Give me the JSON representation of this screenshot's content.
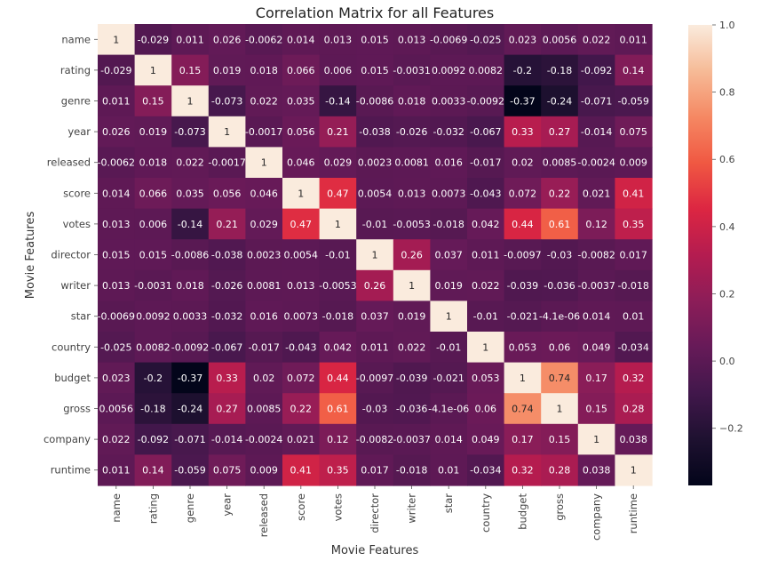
{
  "chart_data": {
    "type": "heatmap",
    "title": "Correlation Matrix for all Features",
    "xlabel": "Movie Features",
    "ylabel": "Movie Features",
    "labels": [
      "name",
      "rating",
      "genre",
      "year",
      "released",
      "score",
      "votes",
      "director",
      "writer",
      "star",
      "country",
      "budget",
      "gross",
      "company",
      "runtime"
    ],
    "values": [
      [
        1,
        -0.029,
        0.011,
        0.026,
        -0.0062,
        0.014,
        0.013,
        0.015,
        0.013,
        -0.0069,
        -0.025,
        0.023,
        0.0056,
        0.022,
        0.011
      ],
      [
        -0.029,
        1,
        0.15,
        0.019,
        0.018,
        0.066,
        0.006,
        0.015,
        -0.0031,
        0.0092,
        0.0082,
        -0.2,
        -0.18,
        -0.092,
        0.14
      ],
      [
        0.011,
        0.15,
        1,
        -0.073,
        0.022,
        0.035,
        -0.14,
        -0.0086,
        0.018,
        0.0033,
        -0.0092,
        -0.37,
        -0.24,
        -0.071,
        -0.059
      ],
      [
        0.026,
        0.019,
        -0.073,
        1,
        -0.0017,
        0.056,
        0.21,
        -0.038,
        -0.026,
        -0.032,
        -0.067,
        0.33,
        0.27,
        -0.014,
        0.075
      ],
      [
        -0.0062,
        0.018,
        0.022,
        -0.0017,
        1,
        0.046,
        0.029,
        0.0023,
        0.0081,
        0.016,
        -0.017,
        0.02,
        0.0085,
        -0.0024,
        0.009
      ],
      [
        0.014,
        0.066,
        0.035,
        0.056,
        0.046,
        1,
        0.47,
        0.0054,
        0.013,
        0.0073,
        -0.043,
        0.072,
        0.22,
        0.021,
        0.41
      ],
      [
        0.013,
        0.006,
        -0.14,
        0.21,
        0.029,
        0.47,
        1,
        -0.01,
        -0.0053,
        -0.018,
        0.042,
        0.44,
        0.61,
        0.12,
        0.35
      ],
      [
        0.015,
        0.015,
        -0.0086,
        -0.038,
        0.0023,
        0.0054,
        -0.01,
        1,
        0.26,
        0.037,
        0.011,
        -0.0097,
        -0.03,
        -0.0082,
        0.017
      ],
      [
        0.013,
        -0.0031,
        0.018,
        -0.026,
        0.0081,
        0.013,
        -0.0053,
        0.26,
        1,
        0.019,
        0.022,
        -0.039,
        -0.036,
        -0.0037,
        -0.018
      ],
      [
        -0.0069,
        0.0092,
        0.0033,
        -0.032,
        0.016,
        0.0073,
        -0.018,
        0.037,
        0.019,
        1,
        -0.01,
        -0.021,
        -4.1e-06,
        0.014,
        0.01
      ],
      [
        -0.025,
        0.0082,
        -0.0092,
        -0.067,
        -0.017,
        -0.043,
        0.042,
        0.011,
        0.022,
        -0.01,
        1,
        0.053,
        0.06,
        0.049,
        -0.034
      ],
      [
        0.023,
        -0.2,
        -0.37,
        0.33,
        0.02,
        0.072,
        0.44,
        -0.0097,
        -0.039,
        -0.021,
        0.053,
        1,
        0.74,
        0.17,
        0.32
      ],
      [
        0.0056,
        -0.18,
        -0.24,
        0.27,
        0.0085,
        0.22,
        0.61,
        -0.03,
        -0.036,
        -4.1e-06,
        0.06,
        0.74,
        1,
        0.15,
        0.28
      ],
      [
        0.022,
        -0.092,
        -0.071,
        -0.014,
        -0.0024,
        0.021,
        0.12,
        -0.0082,
        -0.0037,
        0.014,
        0.049,
        0.17,
        0.15,
        1,
        0.038
      ],
      [
        0.011,
        0.14,
        -0.059,
        0.075,
        0.009,
        0.41,
        0.35,
        0.017,
        -0.018,
        0.01,
        -0.034,
        0.32,
        0.28,
        0.038,
        1
      ]
    ],
    "annotations": [
      [
        "1",
        "-0.029",
        "0.011",
        "0.026",
        "-0.0062",
        "0.014",
        "0.013",
        "0.015",
        "0.013",
        "-0.0069",
        "-0.025",
        "0.023",
        "0.0056",
        "0.022",
        "0.011"
      ],
      [
        "-0.029",
        "1",
        "0.15",
        "0.019",
        "0.018",
        "0.066",
        "0.006",
        "0.015",
        "-0.0031",
        "0.0092",
        "0.0082",
        "-0.2",
        "-0.18",
        "-0.092",
        "0.14"
      ],
      [
        "0.011",
        "0.15",
        "1",
        "-0.073",
        "0.022",
        "0.035",
        "-0.14",
        "-0.0086",
        "0.018",
        "0.0033",
        "-0.0092",
        "-0.37",
        "-0.24",
        "-0.071",
        "-0.059"
      ],
      [
        "0.026",
        "0.019",
        "-0.073",
        "1",
        "-0.0017",
        "0.056",
        "0.21",
        "-0.038",
        "-0.026",
        "-0.032",
        "-0.067",
        "0.33",
        "0.27",
        "-0.014",
        "0.075"
      ],
      [
        "-0.0062",
        "0.018",
        "0.022",
        "-0.0017",
        "1",
        "0.046",
        "0.029",
        "0.0023",
        "0.0081",
        "0.016",
        "-0.017",
        "0.02",
        "0.0085",
        "-0.0024",
        "0.009"
      ],
      [
        "0.014",
        "0.066",
        "0.035",
        "0.056",
        "0.046",
        "1",
        "0.47",
        "0.0054",
        "0.013",
        "0.0073",
        "-0.043",
        "0.072",
        "0.22",
        "0.021",
        "0.41"
      ],
      [
        "0.013",
        "0.006",
        "-0.14",
        "0.21",
        "0.029",
        "0.47",
        "1",
        "-0.01",
        "-0.0053",
        "-0.018",
        "0.042",
        "0.44",
        "0.61",
        "0.12",
        "0.35"
      ],
      [
        "0.015",
        "0.015",
        "-0.0086",
        "-0.038",
        "0.0023",
        "0.0054",
        "-0.01",
        "1",
        "0.26",
        "0.037",
        "0.011",
        "-0.0097",
        "-0.03",
        "-0.0082",
        "0.017"
      ],
      [
        "0.013",
        "-0.0031",
        "0.018",
        "-0.026",
        "0.0081",
        "0.013",
        "-0.0053",
        "0.26",
        "1",
        "0.019",
        "0.022",
        "-0.039",
        "-0.036",
        "-0.0037",
        "-0.018"
      ],
      [
        "-0.0069",
        "0.0092",
        "0.0033",
        "-0.032",
        "0.016",
        "0.0073",
        "-0.018",
        "0.037",
        "0.019",
        "1",
        "-0.01",
        "-0.021",
        "-4.1e-06",
        "0.014",
        "0.01"
      ],
      [
        "-0.025",
        "0.0082",
        "-0.0092",
        "-0.067",
        "-0.017",
        "-0.043",
        "0.042",
        "0.011",
        "0.022",
        "-0.01",
        "1",
        "0.053",
        "0.06",
        "0.049",
        "-0.034"
      ],
      [
        "0.023",
        "-0.2",
        "-0.37",
        "0.33",
        "0.02",
        "0.072",
        "0.44",
        "-0.0097",
        "-0.039",
        "-0.021",
        "0.053",
        "1",
        "0.74",
        "0.17",
        "0.32"
      ],
      [
        "0.0056",
        "-0.18",
        "-0.24",
        "0.27",
        "0.0085",
        "0.22",
        "0.61",
        "-0.03",
        "-0.036",
        "-4.1e-06",
        "0.06",
        "0.74",
        "1",
        "0.15",
        "0.28"
      ],
      [
        "0.022",
        "-0.092",
        "-0.071",
        "-0.014",
        "-0.0024",
        "0.021",
        "0.12",
        "-0.0082",
        "-0.0037",
        "0.014",
        "0.049",
        "0.17",
        "0.15",
        "1",
        "0.038"
      ],
      [
        "0.011",
        "0.14",
        "-0.059",
        "0.075",
        "0.009",
        "0.41",
        "0.35",
        "0.017",
        "-0.018",
        "0.01",
        "-0.034",
        "0.32",
        "0.28",
        "0.038",
        "1"
      ]
    ],
    "colorbar": {
      "vmin": -0.37,
      "vmax": 1.0,
      "ticks": [
        -0.2,
        0.0,
        0.2,
        0.4,
        0.6,
        0.8,
        1.0
      ],
      "tick_labels": [
        "−0.2",
        "0.0",
        "0.2",
        "0.4",
        "0.6",
        "0.8",
        "1.0"
      ],
      "colormap": "rocket"
    }
  }
}
